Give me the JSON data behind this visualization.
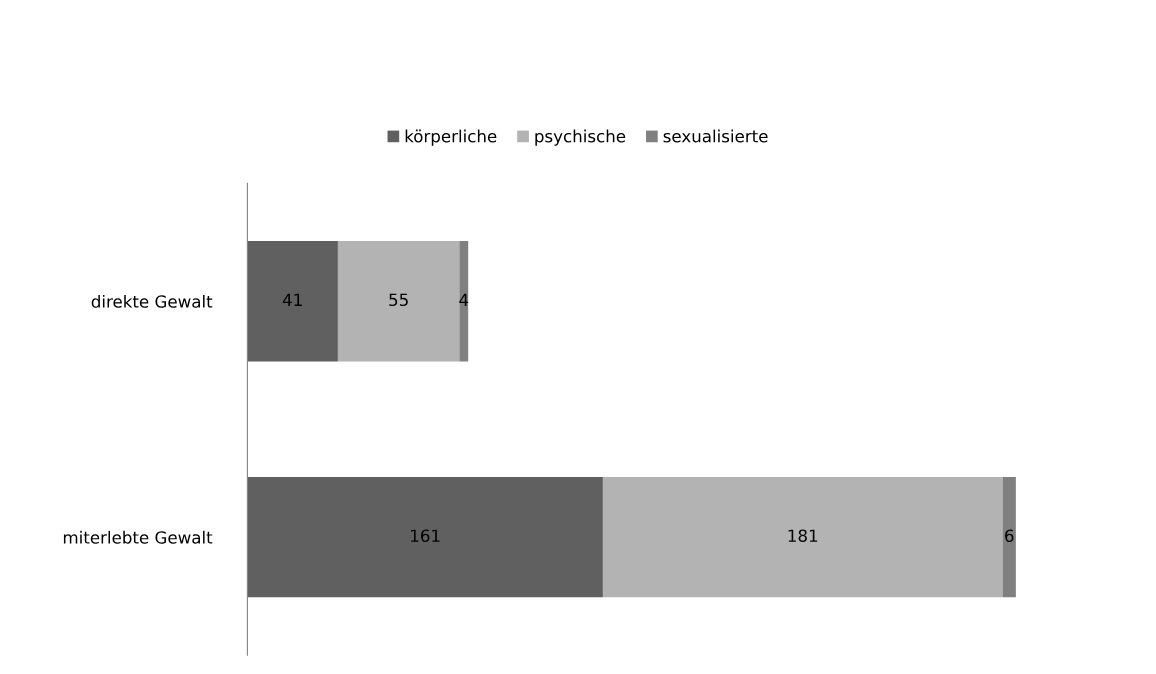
{
  "chart_data": {
    "type": "bar",
    "orientation": "horizontal",
    "stacked": true,
    "categories": [
      "direkte Gewalt",
      "miterlebte Gewalt"
    ],
    "series": [
      {
        "name": "körperliche",
        "color": "#606060",
        "values": [
          41,
          161
        ]
      },
      {
        "name": "psychische",
        "color": "#b3b3b3",
        "values": [
          55,
          181
        ]
      },
      {
        "name": "sexualisierte",
        "color": "#808080",
        "values": [
          4,
          6
        ]
      }
    ],
    "tick_labels": "y",
    "data_labels": true,
    "legend": "top",
    "grid": false
  }
}
